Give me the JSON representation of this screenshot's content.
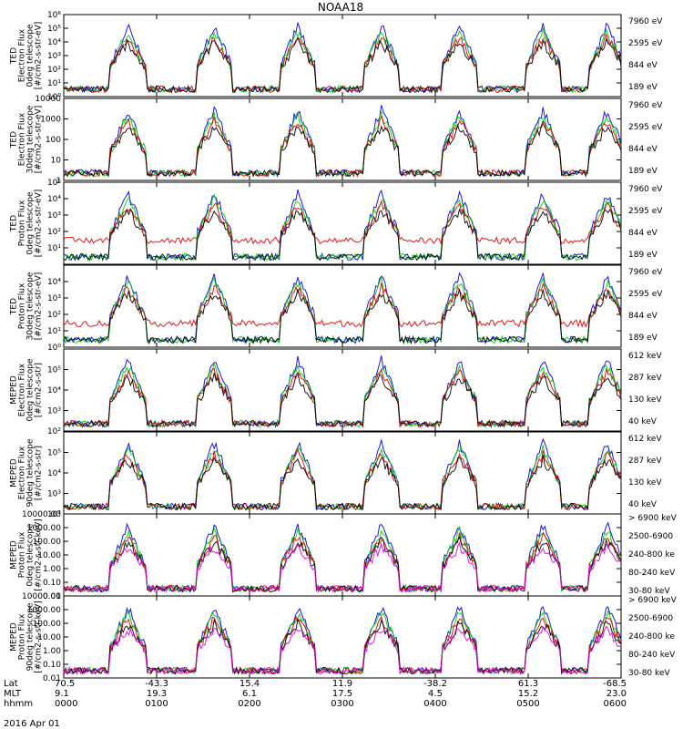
{
  "chart_data": {
    "type": "line",
    "title": "NOAA18",
    "date_label": "2016 Apr 01",
    "x_rows": [
      {
        "label": "Lat",
        "values": [
          "70.5",
          "-43.3",
          "15.4",
          "11.9",
          "-38.2",
          "61.3",
          "-68.5"
        ]
      },
      {
        "label": "MLT",
        "values": [
          "9.1",
          "19.3",
          "6.1",
          "17.5",
          "4.5",
          "15.2",
          "23.0"
        ]
      },
      {
        "label": "hhmm",
        "values": [
          "0000",
          "0100",
          "0200",
          "0300",
          "0400",
          "0500",
          "0600"
        ]
      }
    ],
    "panels": [
      {
        "ylabel": [
          "TED",
          "Electron Flux",
          "0deg telescope",
          "[#/cm2-s-str-eV]"
        ],
        "yscale": "log",
        "ylim": [
          1,
          1000000
        ],
        "yticks": [
          {
            "v": 1,
            "t": "10⁰"
          },
          {
            "v": 10,
            "t": "10¹"
          },
          {
            "v": 100,
            "t": "10²"
          },
          {
            "v": 1000,
            "t": "10³"
          },
          {
            "v": 10000,
            "t": "10⁴"
          },
          {
            "v": 100000,
            "t": "10⁵"
          },
          {
            "v": 1000000,
            "t": "10⁶"
          }
        ],
        "legend": [
          {
            "name": "7960 eV",
            "color": "#000000"
          },
          {
            "name": "2595 eV",
            "color": "#e00000"
          },
          {
            "name": "844 eV",
            "color": "#00cc00"
          },
          {
            "name": "189 eV",
            "color": "#0000e0"
          }
        ]
      },
      {
        "ylabel": [
          "TED",
          "Electron Flux",
          "30deg telescope",
          "[#/cm2-s-str-eV]"
        ],
        "yscale": "log",
        "ylim": [
          1,
          10000
        ],
        "yticks": [
          {
            "v": 1,
            "t": "1"
          },
          {
            "v": 10,
            "t": "10"
          },
          {
            "v": 100,
            "t": "100"
          },
          {
            "v": 1000,
            "t": "1000"
          },
          {
            "v": 10000,
            "t": "10000"
          }
        ],
        "legend": [
          {
            "name": "7960 eV",
            "color": "#000000"
          },
          {
            "name": "2595 eV",
            "color": "#e00000"
          },
          {
            "name": "844 eV",
            "color": "#00cc00"
          },
          {
            "name": "189 eV",
            "color": "#0000e0"
          }
        ]
      },
      {
        "ylabel": [
          "TED",
          "Proton Flux",
          "0deg telescope",
          "[#/cm2-s-str-eV]"
        ],
        "yscale": "log",
        "ylim": [
          1,
          100000
        ],
        "yticks": [
          {
            "v": 10,
            "t": "10¹"
          },
          {
            "v": 100,
            "t": "10²"
          },
          {
            "v": 1000,
            "t": "10³"
          },
          {
            "v": 10000,
            "t": "10⁴"
          },
          {
            "v": 100000,
            "t": "10⁵"
          }
        ],
        "legend": [
          {
            "name": "7960 eV",
            "color": "#000000"
          },
          {
            "name": "2595 eV",
            "color": "#e00000"
          },
          {
            "name": "844 eV",
            "color": "#00cc00"
          },
          {
            "name": "189 eV",
            "color": "#0000e0"
          }
        ]
      },
      {
        "ylabel": [
          "TED",
          "Proton Flux",
          "30deg telescope",
          "[#/cm2-s-str-eV]"
        ],
        "yscale": "log",
        "ylim": [
          1,
          100000
        ],
        "yticks": [
          {
            "v": 1,
            "t": "10⁰"
          },
          {
            "v": 10,
            "t": "10¹"
          },
          {
            "v": 100,
            "t": "10²"
          },
          {
            "v": 1000,
            "t": "10³"
          },
          {
            "v": 10000,
            "t": "10⁴"
          }
        ],
        "legend": [
          {
            "name": "7960 eV",
            "color": "#000000"
          },
          {
            "name": "2595 eV",
            "color": "#e00000"
          },
          {
            "name": "844 eV",
            "color": "#00cc00"
          },
          {
            "name": "189 eV",
            "color": "#0000e0"
          }
        ]
      },
      {
        "ylabel": [
          "MEPED",
          "Electron Flux",
          "0deg telescope",
          "[#/cm2-s-str]"
        ],
        "yscale": "log",
        "ylim": [
          100,
          1000000
        ],
        "yticks": [
          {
            "v": 100,
            "t": "10²"
          },
          {
            "v": 1000,
            "t": "10³"
          },
          {
            "v": 10000,
            "t": "10⁴"
          },
          {
            "v": 100000,
            "t": "10⁵"
          }
        ],
        "legend": [
          {
            "name": "612 keV",
            "color": "#000000"
          },
          {
            "name": "287 keV",
            "color": "#e00000"
          },
          {
            "name": "130 keV",
            "color": "#00cc00"
          },
          {
            "name": "40 keV",
            "color": "#0000e0"
          }
        ]
      },
      {
        "ylabel": [
          "MEPED",
          "Electron Flux",
          "90deg telescope",
          "[#/cm2-s-str]"
        ],
        "yscale": "log",
        "ylim": [
          100,
          1000000
        ],
        "yticks": [
          {
            "v": 100,
            "t": "10²"
          },
          {
            "v": 1000,
            "t": "10³"
          },
          {
            "v": 10000,
            "t": "10⁴"
          },
          {
            "v": 100000,
            "t": "10⁵"
          }
        ],
        "legend": [
          {
            "name": "612 keV",
            "color": "#000000"
          },
          {
            "name": "287 keV",
            "color": "#e00000"
          },
          {
            "name": "130 keV",
            "color": "#00cc00"
          },
          {
            "name": "40 keV",
            "color": "#0000e0"
          }
        ]
      },
      {
        "ylabel": [
          "MEPED",
          "Proton Flux",
          "0deg telescope",
          "[#/cm2-s-str-keV]"
        ],
        "yscale": "log",
        "ylim": [
          0.01,
          10000
        ],
        "yticks": [
          {
            "v": 0.01,
            "t": "0.01"
          },
          {
            "v": 0.1,
            "t": "0.10"
          },
          {
            "v": 1,
            "t": "1.00"
          },
          {
            "v": 10,
            "t": "10.00"
          },
          {
            "v": 100,
            "t": "100.00"
          },
          {
            "v": 1000,
            "t": "1000.00"
          },
          {
            "v": 10000,
            "t": "10000.00"
          }
        ],
        "legend": [
          {
            "name": "> 6900 keV",
            "color": "#e000e0"
          },
          {
            "name": "2500-6900",
            "color": "#000000"
          },
          {
            "name": "240-800 ke",
            "color": "#e00000"
          },
          {
            "name": "80-240 keV",
            "color": "#00cc00"
          },
          {
            "name": "30-80 keV",
            "color": "#0000e0"
          }
        ]
      },
      {
        "ylabel": [
          "MEPED",
          "Proton Flux",
          "90deg telescope",
          "[#/cm2-s-str-keV]"
        ],
        "yscale": "log",
        "ylim": [
          0.01,
          10000
        ],
        "yticks": [
          {
            "v": 0.01,
            "t": "0.01"
          },
          {
            "v": 0.1,
            "t": "0.10"
          },
          {
            "v": 1,
            "t": "1.00"
          },
          {
            "v": 10,
            "t": "10.00"
          },
          {
            "v": 100,
            "t": "100.00"
          },
          {
            "v": 1000,
            "t": "1000.00"
          },
          {
            "v": 10000,
            "t": "10000.00"
          }
        ],
        "legend": [
          {
            "name": "> 6900 keV",
            "color": "#e000e0"
          },
          {
            "name": "2500-6900",
            "color": "#000000"
          },
          {
            "name": "240-800 ke",
            "color": "#e00000"
          },
          {
            "name": "80-240 keV",
            "color": "#00cc00"
          },
          {
            "name": "30-80 keV",
            "color": "#0000e0"
          }
        ]
      }
    ],
    "grid": false,
    "legend_position": "right"
  }
}
